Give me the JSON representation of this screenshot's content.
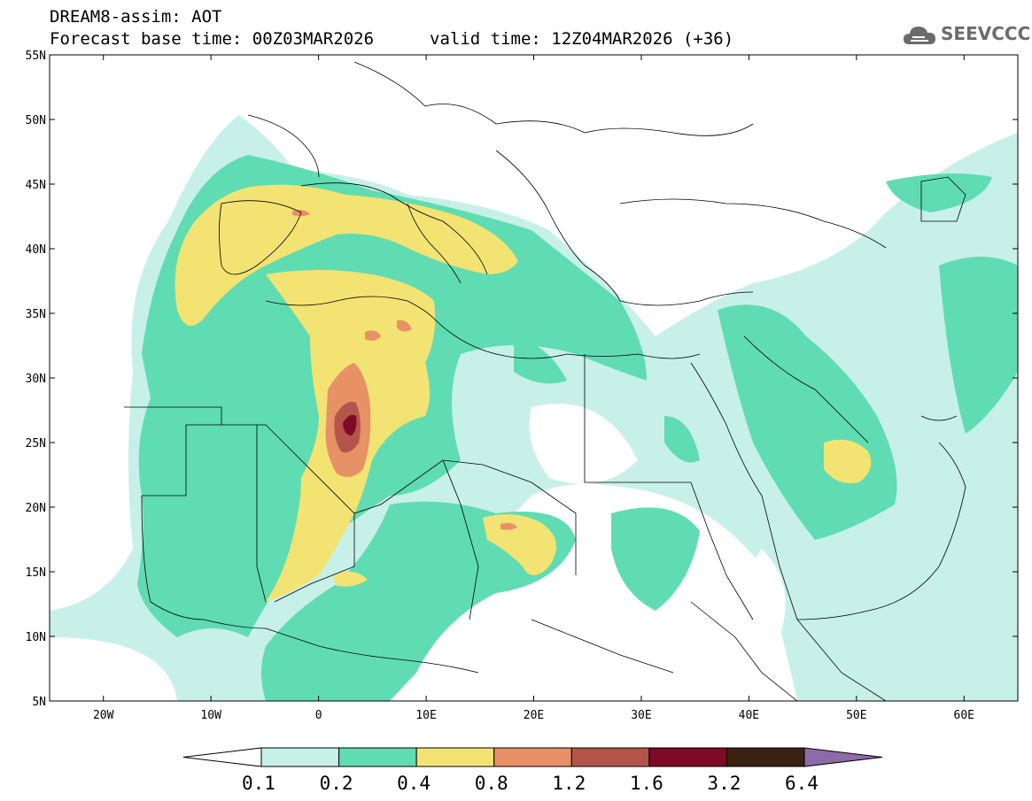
{
  "header": {
    "line1": "DREAM8-assim: AOT",
    "line2": "Forecast base time: 00Z03MAR2026",
    "line3": "valid time: 12Z04MAR2026 (+36)"
  },
  "logo": {
    "text": "SEEVCCC",
    "icon": "cloud-logo-icon"
  },
  "map": {
    "lon_ticks": [
      "20W",
      "10W",
      "0",
      "10E",
      "20E",
      "30E",
      "40E",
      "50E",
      "60E"
    ],
    "lat_ticks": [
      "55N",
      "50N",
      "45N",
      "40N",
      "35N",
      "30N",
      "25N",
      "20N",
      "15N",
      "10N",
      "5N"
    ],
    "extent": {
      "lon": [
        -25,
        65
      ],
      "lat": [
        5,
        55
      ]
    }
  },
  "colorbar": {
    "labels": [
      "0.1",
      "0.2",
      "0.4",
      "0.8",
      "1.2",
      "1.6",
      "3.2",
      "6.4"
    ],
    "colors": [
      "#ffffff",
      "#c7f0e8",
      "#5fdcb2",
      "#f3e373",
      "#e89066",
      "#b3554a",
      "#7e0a27",
      "#3a2110",
      "#8e6aa8"
    ]
  }
}
